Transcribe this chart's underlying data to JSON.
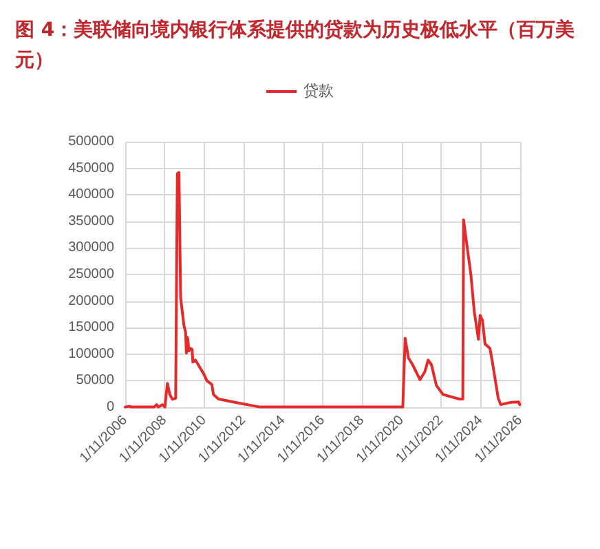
{
  "chart_data": {
    "type": "line",
    "title": "图 4：美联储向境内银行体系提供的贷款为历史极低水平（百万美元）",
    "x": [
      "2006-01-11",
      "2006-04-01",
      "2006-05-01",
      "2007-07-01",
      "2007-08-15",
      "2007-09-15",
      "2007-12-01",
      "2008-01-15",
      "2008-03-01",
      "2008-04-15",
      "2008-06-01",
      "2008-08-01",
      "2008-09-01",
      "2008-10-01",
      "2008-11-01",
      "2009-01-01",
      "2009-02-01",
      "2009-02-15",
      "2009-03-01",
      "2009-03-15",
      "2009-04-01",
      "2009-05-01",
      "2009-06-01",
      "2009-06-15",
      "2009-08-01",
      "2010-01-01",
      "2010-03-01",
      "2010-06-01",
      "2010-07-01",
      "2010-10-01",
      "2011-08-01",
      "2012-11-01",
      "2020-02-01",
      "2020-03-15",
      "2020-05-15",
      "2020-08-01",
      "2020-12-15",
      "2021-03-15",
      "2021-05-15",
      "2021-07-15",
      "2021-10-15",
      "2022-02-15",
      "2022-09-15",
      "2022-12-15",
      "2023-02-15",
      "2023-03-01",
      "2023-04-15",
      "2023-07-15",
      "2023-09-15",
      "2023-12-01",
      "2024-01-01",
      "2024-02-15",
      "2024-04-01",
      "2024-07-01",
      "2024-08-15",
      "2024-12-01",
      "2025-01-15",
      "2025-08-01",
      "2025-12-15",
      "2026-01-01"
    ],
    "series": [
      {
        "name": "贷款",
        "color": "#e32b2b",
        "values": [
          500,
          2000,
          500,
          500,
          5000,
          500,
          5000,
          500,
          45000,
          24000,
          15000,
          17000,
          440000,
          442000,
          206000,
          154000,
          141000,
          102000,
          132000,
          128000,
          106000,
          111000,
          109000,
          85000,
          89000,
          63000,
          50000,
          43000,
          24000,
          15600,
          9500,
          500,
          500,
          130000,
          93000,
          80000,
          52000,
          67000,
          89000,
          80000,
          41000,
          24000,
          18000,
          15600,
          15600,
          353000,
          318000,
          249000,
          180000,
          128000,
          173000,
          163000,
          119000,
          111000,
          85000,
          17000,
          5000,
          9500,
          10000,
          5000
        ]
      }
    ],
    "xlim": [
      "2006-01-11",
      "2026-01-11"
    ],
    "xticks": [
      {
        "value": "2006-01-11",
        "label": "1/11/2006"
      },
      {
        "value": "2008-01-11",
        "label": "1/11/2008"
      },
      {
        "value": "2010-01-11",
        "label": "1/11/2010"
      },
      {
        "value": "2012-01-11",
        "label": "1/11/2012"
      },
      {
        "value": "2014-01-11",
        "label": "1/11/2014"
      },
      {
        "value": "2016-01-11",
        "label": "1/11/2016"
      },
      {
        "value": "2018-01-11",
        "label": "1/11/2018"
      },
      {
        "value": "2020-01-11",
        "label": "1/11/2020"
      },
      {
        "value": "2022-01-11",
        "label": "1/11/2022"
      },
      {
        "value": "2024-01-11",
        "label": "1/11/2024"
      },
      {
        "value": "2026-01-11",
        "label": "1/11/2026"
      }
    ],
    "ylim": [
      0,
      500000
    ],
    "yticks": [
      0,
      50000,
      100000,
      150000,
      200000,
      250000,
      300000,
      350000,
      400000,
      450000,
      500000
    ],
    "grid": true,
    "legend": "top",
    "marker": "none",
    "line_style": "solid"
  }
}
